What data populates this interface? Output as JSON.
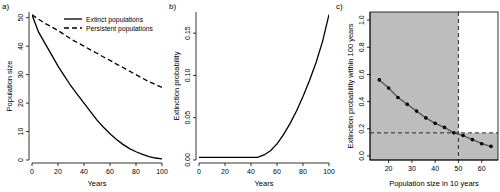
{
  "chart_data": [
    {
      "type": "line",
      "title": "a)",
      "xlabel": "Years",
      "ylabel": "Population size",
      "x": [
        0,
        5,
        10,
        15,
        20,
        25,
        30,
        35,
        40,
        45,
        50,
        55,
        60,
        65,
        70,
        75,
        80,
        85,
        90,
        95,
        100
      ],
      "xlim": [
        0,
        100
      ],
      "xticks": [
        0,
        20,
        40,
        60,
        80,
        100
      ],
      "ylim": [
        0,
        52
      ],
      "yticks": [
        0,
        10,
        20,
        30,
        40,
        50
      ],
      "legend": "top-right",
      "series": [
        {
          "name": "Extinct populations",
          "color": "#000000",
          "line_style": "solid",
          "values": [
            51,
            45,
            41,
            37,
            33,
            29.5,
            26,
            23,
            20,
            17,
            14,
            11.5,
            9.2,
            7.2,
            5.5,
            4,
            2.9,
            2,
            1.2,
            0.7,
            0.4
          ]
        },
        {
          "name": "Persistent populations",
          "color": "#000000",
          "line_style": "dashed",
          "values": [
            51,
            49.5,
            48,
            46.8,
            45.5,
            44,
            42.5,
            41.2,
            40,
            38.7,
            37.5,
            36.2,
            35,
            33.7,
            32.5,
            31.2,
            30,
            28.7,
            27.5,
            26.5,
            25.5
          ]
        }
      ]
    },
    {
      "type": "line",
      "title": "b)",
      "xlabel": "Years",
      "ylabel": "Extinction probability",
      "x": [
        0,
        5,
        10,
        15,
        20,
        25,
        30,
        35,
        40,
        45,
        50,
        55,
        60,
        65,
        70,
        75,
        80,
        85,
        90,
        95,
        100
      ],
      "xlim": [
        0,
        100
      ],
      "xticks": [
        0,
        20,
        40,
        60,
        80,
        100
      ],
      "ylim": [
        0,
        0.175
      ],
      "yticks": [
        {
          "value": 0,
          "label": "0.00"
        },
        0.05,
        {
          "value": 0.1,
          "label": "0.10"
        },
        {
          "value": 0.15,
          "label": "0.15"
        }
      ],
      "series": [
        {
          "color": "#000000",
          "line_style": "solid",
          "values": [
            0.003,
            0.003,
            0.003,
            0.003,
            0.003,
            0.003,
            0.003,
            0.003,
            0.003,
            0.003,
            0.006,
            0.011,
            0.019,
            0.03,
            0.043,
            0.058,
            0.075,
            0.094,
            0.115,
            0.14,
            0.172
          ]
        }
      ]
    },
    {
      "type": "line",
      "title": "c)",
      "xlabel": "Population size in 10 years",
      "ylabel": "Extinction probability within 100 years",
      "x": [
        16,
        20,
        24,
        28,
        32,
        36,
        40,
        44,
        48,
        52,
        56,
        60,
        64
      ],
      "xlim": [
        12,
        67
      ],
      "xticks": [
        20,
        30,
        40,
        50,
        60
      ],
      "ylim": [
        -0.03,
        1.06
      ],
      "yticks": [
        {
          "value": 0,
          "label": "0.0"
        },
        0.2,
        0.4,
        0.6,
        0.8,
        {
          "value": 1,
          "label": "1.0"
        }
      ],
      "threshold_x": 50,
      "threshold_y": 0.17,
      "series": [
        {
          "color": "#555555",
          "line_style": "solid",
          "marker": "circle",
          "values": [
            0.56,
            0.5,
            0.43,
            0.38,
            0.33,
            0.28,
            0.24,
            0.21,
            0.17,
            0.15,
            0.12,
            0.09,
            0.07
          ]
        }
      ]
    }
  ]
}
